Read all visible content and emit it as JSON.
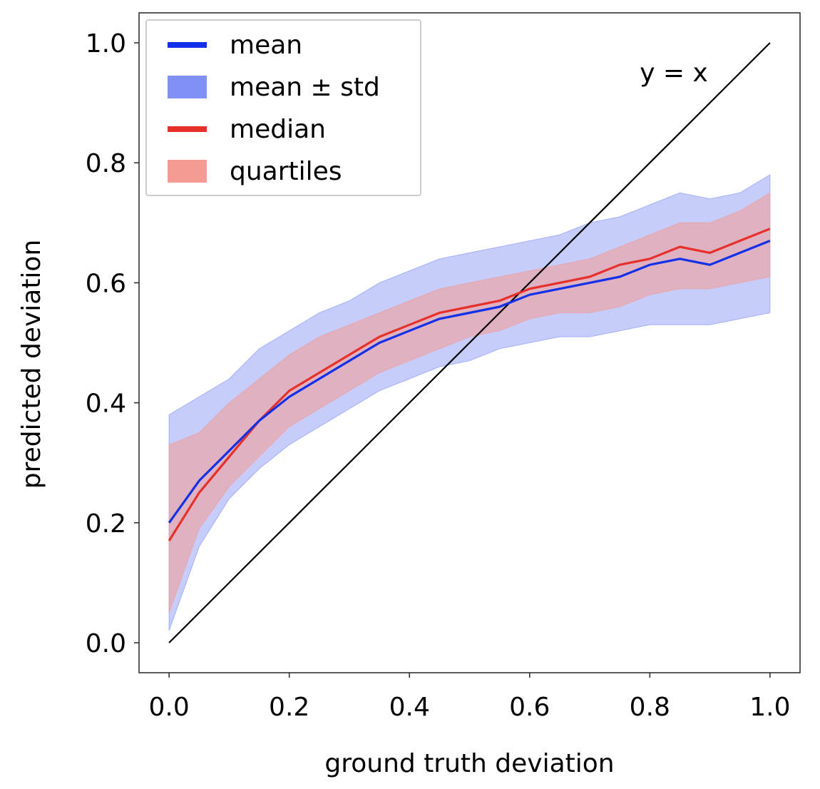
{
  "chart_data": {
    "type": "line",
    "title": "",
    "xlabel": "ground truth deviation",
    "ylabel": "predicted deviation",
    "xlim": [
      -0.05,
      1.05
    ],
    "ylim": [
      -0.05,
      1.05
    ],
    "xticks": [
      0.0,
      0.2,
      0.4,
      0.6,
      0.8,
      1.0
    ],
    "yticks": [
      0.0,
      0.2,
      0.4,
      0.6,
      0.8,
      1.0
    ],
    "xtick_labels": [
      "0.0",
      "0.2",
      "0.4",
      "0.6",
      "0.8",
      "1.0"
    ],
    "ytick_labels": [
      "0.0",
      "0.2",
      "0.4",
      "0.6",
      "0.8",
      "1.0"
    ],
    "legend_position": "top-left",
    "annotation": {
      "text": "y = x",
      "x": 0.84,
      "y": 0.95
    },
    "colors": {
      "mean": "#1230e8",
      "std_fill": "#8090f5",
      "median": "#e8302a",
      "quartile_fill": "#f49a92",
      "identity": "#000000"
    },
    "x": [
      0.0,
      0.05,
      0.1,
      0.15,
      0.2,
      0.25,
      0.3,
      0.35,
      0.4,
      0.45,
      0.5,
      0.55,
      0.6,
      0.65,
      0.7,
      0.75,
      0.8,
      0.85,
      0.9,
      0.95,
      1.0
    ],
    "series": [
      {
        "name": "mean",
        "kind": "line",
        "values": [
          0.2,
          0.27,
          0.32,
          0.37,
          0.41,
          0.44,
          0.47,
          0.5,
          0.52,
          0.54,
          0.55,
          0.56,
          0.58,
          0.59,
          0.6,
          0.61,
          0.63,
          0.64,
          0.63,
          0.65,
          0.67
        ]
      },
      {
        "name": "mean ± std",
        "kind": "band",
        "lower": [
          0.02,
          0.16,
          0.24,
          0.29,
          0.33,
          0.36,
          0.39,
          0.42,
          0.44,
          0.46,
          0.47,
          0.49,
          0.5,
          0.51,
          0.51,
          0.52,
          0.53,
          0.53,
          0.53,
          0.54,
          0.55
        ],
        "upper": [
          0.38,
          0.41,
          0.44,
          0.49,
          0.52,
          0.55,
          0.57,
          0.6,
          0.62,
          0.64,
          0.65,
          0.66,
          0.67,
          0.68,
          0.7,
          0.71,
          0.73,
          0.75,
          0.74,
          0.75,
          0.78
        ]
      },
      {
        "name": "median",
        "kind": "line",
        "values": [
          0.17,
          0.25,
          0.31,
          0.37,
          0.42,
          0.45,
          0.48,
          0.51,
          0.53,
          0.55,
          0.56,
          0.57,
          0.59,
          0.6,
          0.61,
          0.63,
          0.64,
          0.66,
          0.65,
          0.67,
          0.69
        ]
      },
      {
        "name": "quartiles",
        "kind": "band",
        "lower": [
          0.05,
          0.19,
          0.26,
          0.31,
          0.36,
          0.39,
          0.42,
          0.45,
          0.47,
          0.49,
          0.51,
          0.52,
          0.54,
          0.55,
          0.55,
          0.56,
          0.58,
          0.59,
          0.59,
          0.6,
          0.61
        ],
        "upper": [
          0.33,
          0.35,
          0.4,
          0.44,
          0.48,
          0.51,
          0.53,
          0.55,
          0.57,
          0.59,
          0.6,
          0.61,
          0.62,
          0.63,
          0.64,
          0.66,
          0.68,
          0.7,
          0.7,
          0.72,
          0.75
        ]
      },
      {
        "name": "y = x",
        "kind": "line",
        "values": [
          0.0,
          0.05,
          0.1,
          0.15,
          0.2,
          0.25,
          0.3,
          0.35,
          0.4,
          0.45,
          0.5,
          0.55,
          0.6,
          0.65,
          0.7,
          0.75,
          0.8,
          0.85,
          0.9,
          0.95,
          1.0
        ]
      }
    ],
    "legend": [
      {
        "label": "mean",
        "kind": "line",
        "color": "#1230e8"
      },
      {
        "label": "mean ± std",
        "kind": "patch",
        "color": "#8090f5"
      },
      {
        "label": "median",
        "kind": "line",
        "color": "#e8302a"
      },
      {
        "label": "quartiles",
        "kind": "patch",
        "color": "#f49a92"
      }
    ]
  }
}
